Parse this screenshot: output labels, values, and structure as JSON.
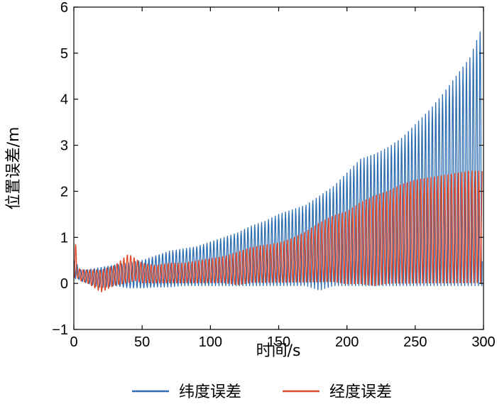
{
  "chart_data": {
    "type": "line",
    "xlabel": "时间/s",
    "ylabel": "位置误差/m",
    "xlim": [
      0,
      300
    ],
    "ylim": [
      -1,
      6
    ],
    "xticks": [
      "0",
      "50",
      "100",
      "150",
      "200",
      "250",
      "300"
    ],
    "yticks": [
      "−1",
      "0",
      "1",
      "2",
      "3",
      "4",
      "5",
      "6"
    ],
    "grid": false,
    "legend_position": "bottom",
    "oscillation_period_s": 2.5,
    "series": [
      {
        "name": "纬度误差",
        "color": "#2e6db0",
        "envelope_x": [
          0,
          1,
          2,
          3,
          5,
          10,
          20,
          30,
          40,
          50,
          60,
          70,
          80,
          90,
          100,
          110,
          120,
          130,
          140,
          150,
          160,
          170,
          180,
          190,
          200,
          210,
          220,
          230,
          240,
          250,
          260,
          270,
          280,
          290,
          298
        ],
        "envelope_upper": [
          0.2,
          1.2,
          0.5,
          0.3,
          0.3,
          0.3,
          0.35,
          0.4,
          0.45,
          0.5,
          0.6,
          0.7,
          0.75,
          0.8,
          0.9,
          1.0,
          1.1,
          1.25,
          1.35,
          1.5,
          1.6,
          1.7,
          1.9,
          2.1,
          2.4,
          2.7,
          2.8,
          2.95,
          3.15,
          3.45,
          3.75,
          4.1,
          4.5,
          4.9,
          5.5
        ],
        "envelope_lower": [
          0.1,
          0.1,
          0.1,
          0.1,
          0.05,
          0.0,
          -0.1,
          -0.05,
          -0.1,
          -0.1,
          -0.08,
          -0.08,
          -0.05,
          -0.05,
          -0.05,
          -0.05,
          -0.05,
          -0.05,
          -0.05,
          -0.05,
          -0.05,
          -0.05,
          -0.15,
          -0.05,
          -0.05,
          -0.05,
          -0.05,
          -0.05,
          -0.05,
          -0.05,
          -0.05,
          -0.05,
          -0.05,
          -0.05,
          -0.05
        ]
      },
      {
        "name": "经度误差",
        "color": "#e0482a",
        "envelope_x": [
          0,
          1,
          2,
          3,
          5,
          10,
          15,
          20,
          30,
          40,
          45,
          50,
          60,
          70,
          80,
          90,
          100,
          110,
          120,
          130,
          140,
          150,
          160,
          170,
          180,
          190,
          200,
          210,
          220,
          230,
          240,
          250,
          260,
          270,
          280,
          290,
          298
        ],
        "envelope_upper": [
          0.2,
          1.25,
          0.4,
          0.35,
          0.3,
          0.3,
          0.3,
          0.3,
          0.4,
          0.65,
          0.55,
          0.45,
          0.4,
          0.45,
          0.45,
          0.5,
          0.55,
          0.6,
          0.7,
          0.8,
          0.85,
          0.9,
          1.0,
          1.15,
          1.35,
          1.5,
          1.6,
          1.8,
          1.95,
          2.05,
          2.2,
          2.3,
          2.35,
          2.4,
          2.45,
          2.5,
          2.5
        ],
        "envelope_lower": [
          0.1,
          0.1,
          0.15,
          0.1,
          0.05,
          0.0,
          -0.1,
          -0.2,
          -0.05,
          0.0,
          0.05,
          0.0,
          0.0,
          0.0,
          0.0,
          0.0,
          0.0,
          0.0,
          -0.05,
          0.0,
          0.0,
          0.0,
          0.0,
          0.0,
          0.0,
          0.0,
          -0.05,
          -0.05,
          -0.1,
          -0.05,
          -0.05,
          -0.05,
          -0.05,
          -0.05,
          -0.05,
          -0.05,
          -0.05
        ]
      }
    ]
  }
}
